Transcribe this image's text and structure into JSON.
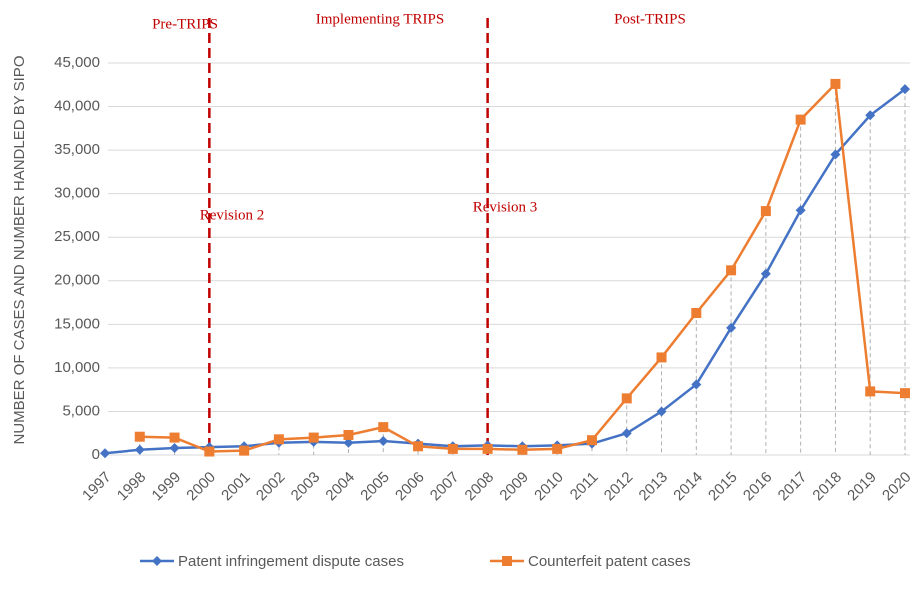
{
  "chart_data": {
    "type": "line",
    "y_label": "NUMBER OF CASES AND NUMBER HANDLED BY SIPO",
    "categories": [
      "1997",
      "1998",
      "1999",
      "2000",
      "2001",
      "2002",
      "2003",
      "2004",
      "2005",
      "2006",
      "2007",
      "2008",
      "2009",
      "2010",
      "2011",
      "2012",
      "2013",
      "2014",
      "2015",
      "2016",
      "2017",
      "2018",
      "2019",
      "2020"
    ],
    "series": [
      {
        "name": "Patent infringement dispute cases",
        "color": "#4472c4",
        "marker": "diamond",
        "values": [
          200,
          600,
          800,
          900,
          1000,
          1400,
          1500,
          1400,
          1600,
          1300,
          1000,
          1100,
          1000,
          1100,
          1300,
          2500,
          5000,
          8100,
          14600,
          20800,
          28100,
          34500,
          39000,
          42000
        ]
      },
      {
        "name": "Counterfeit patent cases",
        "color": "#ed7d31",
        "marker": "square",
        "values": [
          null,
          2100,
          2000,
          400,
          500,
          1800,
          2000,
          2300,
          3200,
          1000,
          700,
          700,
          600,
          700,
          1700,
          6500,
          11200,
          16300,
          21200,
          28000,
          38500,
          42600,
          7300,
          7100
        ]
      }
    ],
    "ylim": [
      0,
      45000
    ],
    "yticks": [
      0,
      {
        "value": 5000,
        "label": "5,000"
      },
      {
        "value": 10000,
        "label": "10,000"
      },
      {
        "value": 15000,
        "label": "15,000"
      },
      {
        "value": 20000,
        "label": "20,000"
      },
      {
        "value": 25000,
        "label": "25,000"
      },
      {
        "value": 30000,
        "label": "30,000"
      },
      {
        "value": 35000,
        "label": "35,000"
      },
      {
        "value": 40000,
        "label": "40,000"
      },
      {
        "value": 45000,
        "label": "45,000"
      }
    ],
    "grid": true,
    "drop_lines": true,
    "reference_lines": [
      "2000",
      "2008"
    ],
    "reference_color": "#c00000",
    "annotations": [
      "Pre-TRIPS",
      "Implementing TRIPS",
      "Post-TRIPS",
      "Revision 2",
      "Revision 3"
    ],
    "legend": "bottom"
  }
}
